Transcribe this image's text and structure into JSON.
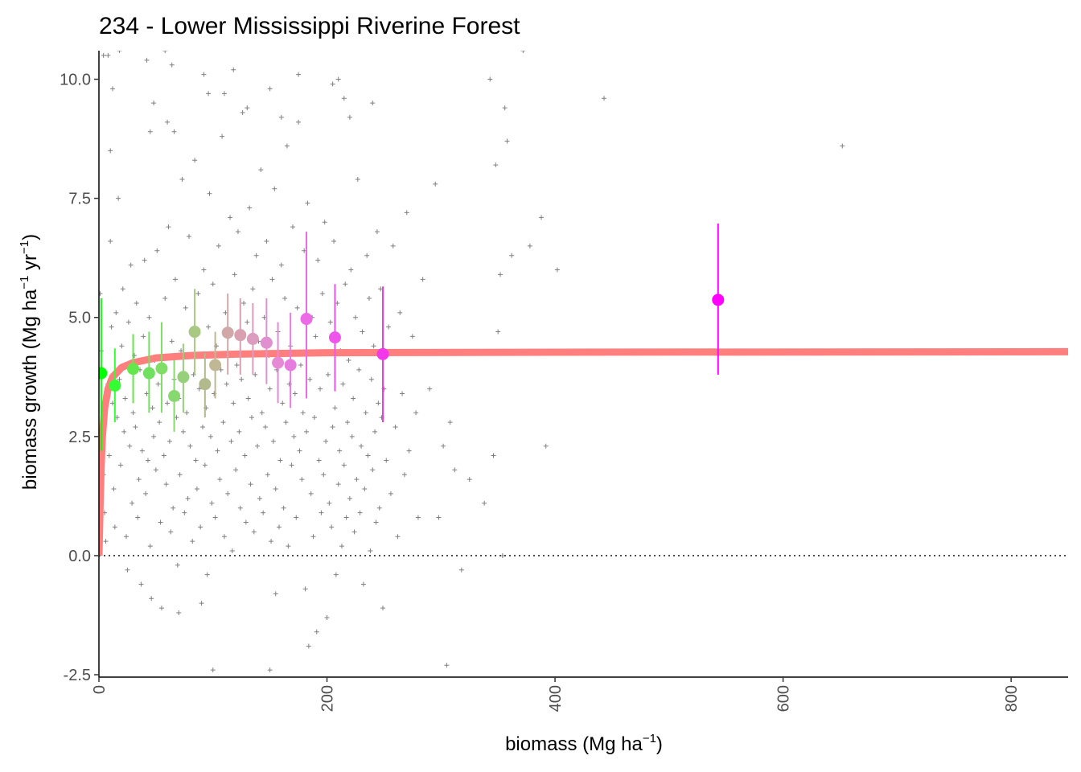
{
  "chart_data": {
    "type": "scatter",
    "title": "234 - Lower Mississippi Riverine Forest",
    "xlabel": {
      "main": "biomass (Mg ha",
      "sup": "−1",
      "tail": ")"
    },
    "ylabel": {
      "a": "biomass growth (Mg ha",
      "sup1": "−1",
      "b": " yr",
      "sup2": "−1",
      "c": ")"
    },
    "xlim": [
      0,
      850
    ],
    "ylim": [
      -2.55,
      10.6
    ],
    "x_ticks": [
      0,
      200,
      400,
      600,
      800
    ],
    "x_tick_labels": [
      "0",
      "200",
      "400",
      "600",
      "800"
    ],
    "y_ticks": [
      -2.5,
      0,
      2.5,
      5,
      7.5,
      10
    ],
    "y_tick_labels": [
      "-2.5",
      "0.0",
      "2.5",
      "5.0",
      "7.5",
      "10.0"
    ],
    "grid": false,
    "reference_line": {
      "y": 0,
      "style": "dotted"
    },
    "fit_curve": {
      "color": "#ff7f7f",
      "points": [
        [
          0,
          0
        ],
        [
          1,
          1.05
        ],
        [
          2,
          1.9
        ],
        [
          3,
          2.5
        ],
        [
          5,
          3.1
        ],
        [
          8,
          3.5
        ],
        [
          12,
          3.75
        ],
        [
          20,
          3.95
        ],
        [
          30,
          4.05
        ],
        [
          50,
          4.15
        ],
        [
          80,
          4.2
        ],
        [
          120,
          4.23
        ],
        [
          200,
          4.26
        ],
        [
          400,
          4.27
        ],
        [
          850,
          4.28
        ]
      ]
    },
    "binned_means": [
      {
        "x": 2,
        "y": 3.83,
        "lo": 2.2,
        "hi": 5.4,
        "color": "#00ff00"
      },
      {
        "x": 14,
        "y": 3.57,
        "lo": 2.8,
        "hi": 4.35,
        "color": "#33ff33"
      },
      {
        "x": 30,
        "y": 3.92,
        "lo": 3.2,
        "hi": 4.65,
        "color": "#66e64d"
      },
      {
        "x": 44,
        "y": 3.83,
        "lo": 3.0,
        "hi": 4.7,
        "color": "#70e060"
      },
      {
        "x": 55,
        "y": 3.93,
        "lo": 3.0,
        "hi": 4.9,
        "color": "#80dd66"
      },
      {
        "x": 66,
        "y": 3.35,
        "lo": 2.6,
        "hi": 4.1,
        "color": "#88d870"
      },
      {
        "x": 74,
        "y": 3.75,
        "lo": 3.0,
        "hi": 4.45,
        "color": "#96d07a"
      },
      {
        "x": 84,
        "y": 4.7,
        "lo": 3.8,
        "hi": 5.6,
        "color": "#a8c884"
      },
      {
        "x": 93,
        "y": 3.6,
        "lo": 2.9,
        "hi": 4.25,
        "color": "#b2b98c"
      },
      {
        "x": 102,
        "y": 4.0,
        "lo": 3.3,
        "hi": 4.7,
        "color": "#c0b894"
      },
      {
        "x": 113,
        "y": 4.68,
        "lo": 3.8,
        "hi": 5.5,
        "color": "#d0a8a8"
      },
      {
        "x": 124,
        "y": 4.63,
        "lo": 3.8,
        "hi": 5.4,
        "color": "#d8a0b0"
      },
      {
        "x": 135,
        "y": 4.55,
        "lo": 3.8,
        "hi": 5.3,
        "color": "#dc9cc0"
      },
      {
        "x": 147,
        "y": 4.47,
        "lo": 3.6,
        "hi": 5.4,
        "color": "#e090d0"
      },
      {
        "x": 157,
        "y": 4.05,
        "lo": 3.2,
        "hi": 4.9,
        "color": "#e68ad6"
      },
      {
        "x": 168,
        "y": 4.0,
        "lo": 3.1,
        "hi": 5.1,
        "color": "#e67ce0"
      },
      {
        "x": 182,
        "y": 4.97,
        "lo": 3.3,
        "hi": 6.8,
        "color": "#ec6ae6"
      },
      {
        "x": 207,
        "y": 4.58,
        "lo": 3.45,
        "hi": 5.7,
        "color": "#ee55ea"
      },
      {
        "x": 249,
        "y": 4.23,
        "lo": 2.8,
        "hi": 5.65,
        "color": "#f238e8"
      },
      {
        "x": 543,
        "y": 5.37,
        "lo": 3.8,
        "hi": 6.97,
        "color": "#ff00ff"
      }
    ],
    "raw_points": [
      [
        1,
        5.5
      ],
      [
        2,
        4.3
      ],
      [
        3,
        2.4
      ],
      [
        4,
        1.7
      ],
      [
        5,
        0.9
      ],
      [
        6,
        0.3
      ],
      [
        8,
        3.6
      ],
      [
        9,
        2.1
      ],
      [
        10,
        6.6
      ],
      [
        11,
        4.8
      ],
      [
        12,
        3.2
      ],
      [
        13,
        1.4
      ],
      [
        14,
        0.6
      ],
      [
        15,
        5.1
      ],
      [
        16,
        2.9
      ],
      [
        17,
        7.5
      ],
      [
        18,
        3.7
      ],
      [
        19,
        1.9
      ],
      [
        20,
        4.4
      ],
      [
        21,
        5.6
      ],
      [
        22,
        2.6
      ],
      [
        23,
        3.3
      ],
      [
        24,
        0.4
      ],
      [
        25,
        -0.3
      ],
      [
        26,
        4.9
      ],
      [
        27,
        2.3
      ],
      [
        28,
        6.1
      ],
      [
        29,
        1.1
      ],
      [
        30,
        3.0
      ],
      [
        31,
        4.2
      ],
      [
        32,
        2.7
      ],
      [
        33,
        5.3
      ],
      [
        34,
        0.8
      ],
      [
        35,
        1.6
      ],
      [
        36,
        3.9
      ],
      [
        37,
        -0.6
      ],
      [
        38,
        2.2
      ],
      [
        39,
        4.6
      ],
      [
        40,
        6.2
      ],
      [
        41,
        1.3
      ],
      [
        42,
        3.4
      ],
      [
        43,
        2.0
      ],
      [
        44,
        5.0
      ],
      [
        45,
        0.2
      ],
      [
        46,
        -0.9
      ],
      [
        47,
        3.1
      ],
      [
        48,
        2.5
      ],
      [
        49,
        4.1
      ],
      [
        50,
        1.8
      ],
      [
        51,
        6.4
      ],
      [
        52,
        3.6
      ],
      [
        53,
        2.8
      ],
      [
        54,
        0.7
      ],
      [
        55,
        -1.1
      ],
      [
        56,
        4.0
      ],
      [
        57,
        2.1
      ],
      [
        58,
        5.4
      ],
      [
        59,
        1.5
      ],
      [
        60,
        3.2
      ],
      [
        61,
        6.9
      ],
      [
        62,
        2.4
      ],
      [
        63,
        0.5
      ],
      [
        64,
        4.5
      ],
      [
        65,
        1.0
      ],
      [
        66,
        3.7
      ],
      [
        67,
        5.8
      ],
      [
        68,
        2.9
      ],
      [
        69,
        -0.2
      ],
      [
        70,
        3.3
      ],
      [
        71,
        1.7
      ],
      [
        72,
        4.3
      ],
      [
        73,
        7.9
      ],
      [
        74,
        2.6
      ],
      [
        75,
        0.9
      ],
      [
        76,
        5.2
      ],
      [
        77,
        3.0
      ],
      [
        78,
        1.2
      ],
      [
        79,
        6.7
      ],
      [
        80,
        2.3
      ],
      [
        81,
        4.7
      ],
      [
        82,
        0.3
      ],
      [
        83,
        3.8
      ],
      [
        84,
        8.3
      ],
      [
        85,
        2.0
      ],
      [
        86,
        1.4
      ],
      [
        87,
        5.5
      ],
      [
        88,
        3.5
      ],
      [
        89,
        0.6
      ],
      [
        90,
        4.2
      ],
      [
        91,
        2.7
      ],
      [
        92,
        6.0
      ],
      [
        93,
        1.9
      ],
      [
        94,
        3.1
      ],
      [
        95,
        -0.4
      ],
      [
        96,
        4.8
      ],
      [
        97,
        7.6
      ],
      [
        98,
        2.5
      ],
      [
        99,
        1.1
      ],
      [
        100,
        5.7
      ],
      [
        101,
        3.4
      ],
      [
        102,
        0.8
      ],
      [
        103,
        4.4
      ],
      [
        104,
        2.2
      ],
      [
        105,
        6.5
      ],
      [
        106,
        1.6
      ],
      [
        107,
        3.9
      ],
      [
        108,
        8.8
      ],
      [
        109,
        2.8
      ],
      [
        110,
        0.4
      ],
      [
        111,
        5.1
      ],
      [
        112,
        3.6
      ],
      [
        113,
        1.3
      ],
      [
        114,
        4.6
      ],
      [
        115,
        7.1
      ],
      [
        116,
        2.4
      ],
      [
        117,
        0.1
      ],
      [
        118,
        3.2
      ],
      [
        119,
        5.9
      ],
      [
        120,
        1.8
      ],
      [
        121,
        4.0
      ],
      [
        122,
        6.8
      ],
      [
        123,
        2.6
      ],
      [
        124,
        1.0
      ],
      [
        125,
        3.7
      ],
      [
        126,
        9.3
      ],
      [
        127,
        5.3
      ],
      [
        128,
        2.1
      ],
      [
        129,
        0.7
      ],
      [
        130,
        4.9
      ],
      [
        131,
        3.3
      ],
      [
        132,
        7.3
      ],
      [
        133,
        1.5
      ],
      [
        134,
        2.9
      ],
      [
        135,
        5.6
      ],
      [
        136,
        0.5
      ],
      [
        137,
        3.8
      ],
      [
        138,
        6.3
      ],
      [
        139,
        2.3
      ],
      [
        140,
        4.5
      ],
      [
        141,
        1.2
      ],
      [
        142,
        8.1
      ],
      [
        143,
        3.0
      ],
      [
        144,
        0.9
      ],
      [
        145,
        5.0
      ],
      [
        146,
        2.7
      ],
      [
        147,
        6.6
      ],
      [
        148,
        1.7
      ],
      [
        149,
        4.2
      ],
      [
        150,
        3.5
      ],
      [
        151,
        0.3
      ],
      [
        152,
        5.8
      ],
      [
        153,
        2.4
      ],
      [
        154,
        7.7
      ],
      [
        155,
        1.4
      ],
      [
        156,
        3.9
      ],
      [
        157,
        4.7
      ],
      [
        158,
        0.6
      ],
      [
        159,
        2.0
      ],
      [
        160,
        6.1
      ],
      [
        161,
        3.2
      ],
      [
        162,
        1.0
      ],
      [
        163,
        5.4
      ],
      [
        164,
        2.8
      ],
      [
        165,
        8.6
      ],
      [
        166,
        0.2
      ],
      [
        167,
        3.6
      ],
      [
        168,
        4.4
      ],
      [
        169,
        1.9
      ],
      [
        170,
        6.9
      ],
      [
        171,
        2.5
      ],
      [
        172,
        3.4
      ],
      [
        173,
        0.8
      ],
      [
        174,
        5.2
      ],
      [
        175,
        9.1
      ],
      [
        176,
        2.2
      ],
      [
        177,
        4.0
      ],
      [
        178,
        1.6
      ],
      [
        179,
        3.0
      ],
      [
        180,
        6.4
      ],
      [
        181,
        -0.7
      ],
      [
        182,
        2.6
      ],
      [
        183,
        7.4
      ],
      [
        184,
        -1.9
      ],
      [
        185,
        3.7
      ],
      [
        186,
        1.3
      ],
      [
        187,
        5.0
      ],
      [
        188,
        0.4
      ],
      [
        189,
        2.9
      ],
      [
        190,
        4.6
      ],
      [
        191,
        -1.6
      ],
      [
        192,
        6.2
      ],
      [
        193,
        2.0
      ],
      [
        194,
        3.5
      ],
      [
        195,
        0.9
      ],
      [
        196,
        5.5
      ],
      [
        197,
        1.7
      ],
      [
        198,
        7.0
      ],
      [
        199,
        2.4
      ],
      [
        200,
        -1.3
      ],
      [
        201,
        3.8
      ],
      [
        202,
        1.1
      ],
      [
        203,
        4.9
      ],
      [
        204,
        0.6
      ],
      [
        205,
        2.7
      ],
      [
        206,
        6.6
      ],
      [
        207,
        3.1
      ],
      [
        208,
        -0.4
      ],
      [
        209,
        5.3
      ],
      [
        210,
        1.5
      ],
      [
        211,
        2.2
      ],
      [
        212,
        4.3
      ],
      [
        213,
        0.2
      ],
      [
        214,
        3.6
      ],
      [
        215,
        1.9
      ],
      [
        216,
        5.7
      ],
      [
        217,
        0.8
      ],
      [
        218,
        2.8
      ],
      [
        219,
        4.1
      ],
      [
        220,
        1.2
      ],
      [
        221,
        6.0
      ],
      [
        222,
        2.5
      ],
      [
        223,
        3.3
      ],
      [
        224,
        0.5
      ],
      [
        225,
        5.0
      ],
      [
        226,
        1.6
      ],
      [
        227,
        7.9
      ],
      [
        228,
        3.9
      ],
      [
        229,
        0.9
      ],
      [
        230,
        2.3
      ],
      [
        231,
        4.7
      ],
      [
        232,
        -0.6
      ],
      [
        233,
        1.4
      ],
      [
        234,
        3.0
      ],
      [
        235,
        6.3
      ],
      [
        236,
        2.1
      ],
      [
        237,
        5.4
      ],
      [
        238,
        0.1
      ],
      [
        239,
        3.7
      ],
      [
        240,
        1.8
      ],
      [
        241,
        4.4
      ],
      [
        242,
        2.6
      ],
      [
        243,
        0.7
      ],
      [
        244,
        6.8
      ],
      [
        245,
        3.2
      ],
      [
        246,
        1.0
      ],
      [
        247,
        5.6
      ],
      [
        248,
        2.9
      ],
      [
        249,
        -1.1
      ],
      [
        250,
        3.5
      ],
      [
        252,
        2.0
      ],
      [
        254,
        4.8
      ],
      [
        256,
        1.3
      ],
      [
        258,
        6.5
      ],
      [
        260,
        2.7
      ],
      [
        262,
        0.4
      ],
      [
        264,
        5.1
      ],
      [
        266,
        3.4
      ],
      [
        268,
        1.7
      ],
      [
        270,
        7.2
      ],
      [
        272,
        2.2
      ],
      [
        275,
        4.6
      ],
      [
        278,
        3.0
      ],
      [
        280,
        0.8
      ],
      [
        284,
        5.8
      ],
      [
        290,
        3.5
      ],
      [
        295,
        7.8
      ],
      [
        298,
        0.8
      ],
      [
        302,
        2.3
      ],
      [
        305,
        -2.3
      ],
      [
        308,
        2.8
      ],
      [
        312,
        1.8
      ],
      [
        318,
        -0.3
      ],
      [
        325,
        1.6
      ],
      [
        338,
        1.1
      ],
      [
        343,
        10.0
      ],
      [
        346,
        2.1
      ],
      [
        348,
        8.2
      ],
      [
        350,
        4.7
      ],
      [
        352,
        5.9
      ],
      [
        354,
        0.0
      ],
      [
        356,
        9.4
      ],
      [
        358,
        8.7
      ],
      [
        362,
        6.3
      ],
      [
        372,
        10.6
      ],
      [
        378,
        6.5
      ],
      [
        388,
        7.1
      ],
      [
        392,
        2.3
      ],
      [
        402,
        6.0
      ],
      [
        443,
        9.6
      ],
      [
        652,
        8.6
      ],
      [
        4,
        10.5
      ],
      [
        8,
        10.5
      ],
      [
        10,
        8.5
      ],
      [
        12,
        9.8
      ],
      [
        18,
        10.6
      ],
      [
        42,
        10.4
      ],
      [
        45,
        8.9
      ],
      [
        48,
        9.5
      ],
      [
        58,
        10.6
      ],
      [
        60,
        9.1
      ],
      [
        64,
        10.3
      ],
      [
        66,
        8.9
      ],
      [
        92,
        10.1
      ],
      [
        96,
        9.7
      ],
      [
        110,
        9.7
      ],
      [
        118,
        10.2
      ],
      [
        130,
        9.4
      ],
      [
        150,
        9.8
      ],
      [
        160,
        9.2
      ],
      [
        175,
        10.1
      ],
      [
        205,
        9.9
      ],
      [
        210,
        10.0
      ],
      [
        215,
        9.6
      ],
      [
        220,
        9.2
      ],
      [
        240,
        9.5
      ],
      [
        70,
        -1.2
      ],
      [
        90,
        -1.0
      ],
      [
        100,
        -2.4
      ],
      [
        150,
        -2.4
      ],
      [
        155,
        -0.8
      ]
    ]
  }
}
